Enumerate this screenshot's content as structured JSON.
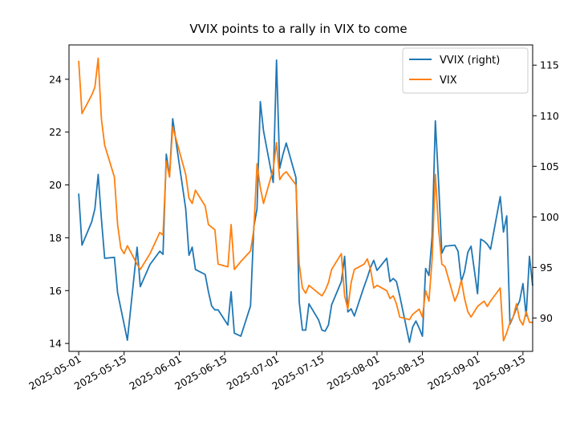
{
  "chart_data": {
    "type": "line",
    "title": "VVIX points to a rally in VIX to come",
    "x_ticks": [
      "2025-05-01",
      "2025-05-15",
      "2025-06-01",
      "2025-06-15",
      "2025-07-01",
      "2025-07-15",
      "2025-08-01",
      "2025-08-15",
      "2025-09-01",
      "2025-09-15"
    ],
    "x_range": [
      "2025-04-28",
      "2025-09-18"
    ],
    "left_axis": {
      "range": [
        13.7,
        25.3
      ],
      "ticks": [
        14,
        16,
        18,
        20,
        22,
        24
      ]
    },
    "right_axis": {
      "range": [
        86.7,
        117.0
      ],
      "ticks": [
        90,
        95,
        100,
        105,
        110,
        115
      ]
    },
    "legend": {
      "position": "upper-right",
      "entries": [
        "VVIX (right)",
        "VIX"
      ]
    },
    "grid": false,
    "series": [
      {
        "name": "VVIX (right)",
        "axis": "right",
        "color": "#1f77b4",
        "points": [
          [
            "2025-05-01",
            102.3
          ],
          [
            "2025-05-02",
            97.2
          ],
          [
            "2025-05-05",
            99.5
          ],
          [
            "2025-05-06",
            100.8
          ],
          [
            "2025-05-07",
            104.2
          ],
          [
            "2025-05-08",
            99.8
          ],
          [
            "2025-05-09",
            95.9
          ],
          [
            "2025-05-12",
            96.0
          ],
          [
            "2025-05-13",
            92.5
          ],
          [
            "2025-05-16",
            87.8
          ],
          [
            "2025-05-19",
            97.0
          ],
          [
            "2025-05-20",
            93.1
          ],
          [
            "2025-05-23",
            95.3
          ],
          [
            "2025-05-26",
            96.6
          ],
          [
            "2025-05-27",
            96.3
          ],
          [
            "2025-05-28",
            106.2
          ],
          [
            "2025-05-29",
            104.0
          ],
          [
            "2025-05-30",
            109.7
          ],
          [
            "2025-06-03",
            100.8
          ],
          [
            "2025-06-04",
            96.2
          ],
          [
            "2025-06-05",
            97.0
          ],
          [
            "2025-06-06",
            94.8
          ],
          [
            "2025-06-09",
            94.3
          ],
          [
            "2025-06-10",
            92.6
          ],
          [
            "2025-06-11",
            91.2
          ],
          [
            "2025-06-12",
            90.8
          ],
          [
            "2025-06-13",
            90.8
          ],
          [
            "2025-06-16",
            89.3
          ],
          [
            "2025-06-17",
            92.6
          ],
          [
            "2025-06-18",
            88.5
          ],
          [
            "2025-06-20",
            88.2
          ],
          [
            "2025-06-23",
            91.2
          ],
          [
            "2025-06-24",
            99.0
          ],
          [
            "2025-06-25",
            100.8
          ],
          [
            "2025-06-26",
            111.4
          ],
          [
            "2025-06-27",
            108.5
          ],
          [
            "2025-06-30",
            103.4
          ],
          [
            "2025-07-01",
            115.5
          ],
          [
            "2025-07-02",
            104.8
          ],
          [
            "2025-07-03",
            106.2
          ],
          [
            "2025-07-04",
            107.3
          ],
          [
            "2025-07-07",
            103.9
          ],
          [
            "2025-07-08",
            91.6
          ],
          [
            "2025-07-09",
            88.8
          ],
          [
            "2025-07-10",
            88.8
          ],
          [
            "2025-07-11",
            91.4
          ],
          [
            "2025-07-14",
            89.8
          ],
          [
            "2025-07-15",
            88.8
          ],
          [
            "2025-07-16",
            88.7
          ],
          [
            "2025-07-17",
            89.3
          ],
          [
            "2025-07-18",
            91.3
          ],
          [
            "2025-07-21",
            93.6
          ],
          [
            "2025-07-22",
            96.1
          ],
          [
            "2025-07-23",
            90.6
          ],
          [
            "2025-07-24",
            90.9
          ],
          [
            "2025-07-25",
            90.2
          ],
          [
            "2025-07-28",
            93.1
          ],
          [
            "2025-07-29",
            94.0
          ],
          [
            "2025-07-30",
            95.0
          ],
          [
            "2025-07-31",
            95.7
          ],
          [
            "2025-08-01",
            94.7
          ],
          [
            "2025-08-04",
            95.9
          ],
          [
            "2025-08-05",
            93.6
          ],
          [
            "2025-08-06",
            93.9
          ],
          [
            "2025-08-07",
            93.6
          ],
          [
            "2025-08-08",
            92.2
          ],
          [
            "2025-08-11",
            87.6
          ],
          [
            "2025-08-12",
            89.1
          ],
          [
            "2025-08-13",
            89.7
          ],
          [
            "2025-08-14",
            89.0
          ],
          [
            "2025-08-15",
            88.2
          ],
          [
            "2025-08-16",
            94.9
          ],
          [
            "2025-08-17",
            94.2
          ],
          [
            "2025-08-18",
            98.1
          ],
          [
            "2025-08-19",
            109.5
          ],
          [
            "2025-08-20",
            103.3
          ],
          [
            "2025-08-21",
            96.4
          ],
          [
            "2025-08-22",
            97.1
          ],
          [
            "2025-08-25",
            97.2
          ],
          [
            "2025-08-26",
            96.6
          ],
          [
            "2025-08-27",
            93.6
          ],
          [
            "2025-08-28",
            94.6
          ],
          [
            "2025-08-29",
            96.5
          ],
          [
            "2025-08-30",
            97.1
          ],
          [
            "2025-09-01",
            92.4
          ],
          [
            "2025-09-02",
            97.8
          ],
          [
            "2025-09-03",
            97.6
          ],
          [
            "2025-09-04",
            97.3
          ],
          [
            "2025-09-05",
            96.8
          ],
          [
            "2025-09-08",
            102.0
          ],
          [
            "2025-09-09",
            98.5
          ],
          [
            "2025-09-10",
            100.1
          ],
          [
            "2025-09-11",
            89.4
          ],
          [
            "2025-09-12",
            90.1
          ],
          [
            "2025-09-13",
            91.0
          ],
          [
            "2025-09-14",
            91.7
          ],
          [
            "2025-09-15",
            93.4
          ],
          [
            "2025-09-16",
            90.2
          ],
          [
            "2025-09-17",
            96.1
          ],
          [
            "2025-09-18",
            93.2
          ]
        ]
      },
      {
        "name": "VIX",
        "axis": "left",
        "color": "#ff7f0e",
        "points": [
          [
            "2025-05-01",
            24.7
          ],
          [
            "2025-05-02",
            22.7
          ],
          [
            "2025-05-05",
            23.4
          ],
          [
            "2025-05-06",
            23.7
          ],
          [
            "2025-05-07",
            24.8
          ],
          [
            "2025-05-08",
            22.5
          ],
          [
            "2025-05-09",
            21.5
          ],
          [
            "2025-05-12",
            20.3
          ],
          [
            "2025-05-13",
            18.5
          ],
          [
            "2025-05-14",
            17.6
          ],
          [
            "2025-05-15",
            17.4
          ],
          [
            "2025-05-16",
            17.7
          ],
          [
            "2025-05-19",
            17.0
          ],
          [
            "2025-05-20",
            16.8
          ],
          [
            "2025-05-23",
            17.4
          ],
          [
            "2025-05-26",
            18.2
          ],
          [
            "2025-05-27",
            18.1
          ],
          [
            "2025-05-28",
            20.9
          ],
          [
            "2025-05-29",
            20.3
          ],
          [
            "2025-05-30",
            22.2
          ],
          [
            "2025-06-03",
            20.4
          ],
          [
            "2025-06-04",
            19.5
          ],
          [
            "2025-06-05",
            19.3
          ],
          [
            "2025-06-06",
            19.8
          ],
          [
            "2025-06-09",
            19.2
          ],
          [
            "2025-06-10",
            18.5
          ],
          [
            "2025-06-11",
            18.4
          ],
          [
            "2025-06-12",
            18.3
          ],
          [
            "2025-06-13",
            17.0
          ],
          [
            "2025-06-16",
            16.9
          ],
          [
            "2025-06-17",
            18.5
          ],
          [
            "2025-06-18",
            16.8
          ],
          [
            "2025-06-20",
            17.1
          ],
          [
            "2025-06-23",
            17.5
          ],
          [
            "2025-06-24",
            18.3
          ],
          [
            "2025-06-25",
            20.8
          ],
          [
            "2025-06-26",
            19.9
          ],
          [
            "2025-06-27",
            19.3
          ],
          [
            "2025-06-30",
            20.6
          ],
          [
            "2025-07-01",
            21.6
          ],
          [
            "2025-07-02",
            20.2
          ],
          [
            "2025-07-03",
            20.4
          ],
          [
            "2025-07-04",
            20.5
          ],
          [
            "2025-07-07",
            20.0
          ],
          [
            "2025-07-08",
            17.0
          ],
          [
            "2025-07-09",
            16.1
          ],
          [
            "2025-07-10",
            15.9
          ],
          [
            "2025-07-11",
            16.2
          ],
          [
            "2025-07-14",
            15.9
          ],
          [
            "2025-07-15",
            15.8
          ],
          [
            "2025-07-16",
            16.0
          ],
          [
            "2025-07-17",
            16.3
          ],
          [
            "2025-07-18",
            16.8
          ],
          [
            "2025-07-21",
            17.4
          ],
          [
            "2025-07-22",
            15.8
          ],
          [
            "2025-07-23",
            15.3
          ],
          [
            "2025-07-24",
            16.3
          ],
          [
            "2025-07-25",
            16.8
          ],
          [
            "2025-07-28",
            17.0
          ],
          [
            "2025-07-29",
            17.2
          ],
          [
            "2025-07-30",
            16.8
          ],
          [
            "2025-07-31",
            16.1
          ],
          [
            "2025-08-01",
            16.2
          ],
          [
            "2025-08-04",
            16.0
          ],
          [
            "2025-08-05",
            15.7
          ],
          [
            "2025-08-06",
            15.8
          ],
          [
            "2025-08-07",
            15.5
          ],
          [
            "2025-08-08",
            15.0
          ],
          [
            "2025-08-11",
            14.9
          ],
          [
            "2025-08-12",
            15.1
          ],
          [
            "2025-08-13",
            15.2
          ],
          [
            "2025-08-14",
            15.3
          ],
          [
            "2025-08-15",
            15.0
          ],
          [
            "2025-08-16",
            16.0
          ],
          [
            "2025-08-17",
            15.6
          ],
          [
            "2025-08-18",
            17.2
          ],
          [
            "2025-08-19",
            20.4
          ],
          [
            "2025-08-20",
            18.3
          ],
          [
            "2025-08-21",
            17.0
          ],
          [
            "2025-08-22",
            16.9
          ],
          [
            "2025-08-25",
            15.6
          ],
          [
            "2025-08-26",
            15.9
          ],
          [
            "2025-08-27",
            16.4
          ],
          [
            "2025-08-28",
            15.7
          ],
          [
            "2025-08-29",
            15.2
          ],
          [
            "2025-08-30",
            15.0
          ],
          [
            "2025-09-01",
            15.4
          ],
          [
            "2025-09-02",
            15.5
          ],
          [
            "2025-09-03",
            15.6
          ],
          [
            "2025-09-04",
            15.4
          ],
          [
            "2025-09-05",
            15.6
          ],
          [
            "2025-09-08",
            16.1
          ],
          [
            "2025-09-09",
            14.1
          ],
          [
            "2025-09-10",
            14.4
          ],
          [
            "2025-09-11",
            14.8
          ],
          [
            "2025-09-12",
            15.0
          ],
          [
            "2025-09-13",
            15.5
          ],
          [
            "2025-09-14",
            14.9
          ],
          [
            "2025-09-15",
            14.7
          ],
          [
            "2025-09-16",
            15.2
          ],
          [
            "2025-09-17",
            14.8
          ],
          [
            "2025-09-18",
            14.8
          ]
        ]
      }
    ]
  }
}
